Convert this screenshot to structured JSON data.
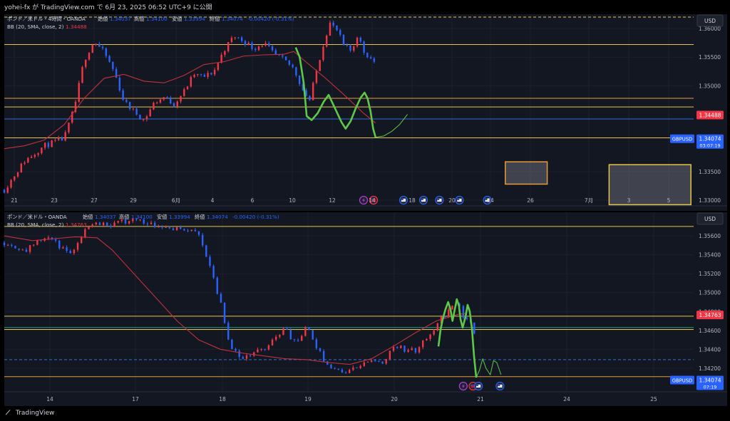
{
  "header": {
    "caption": "yohei-fx が TradingView.com で 6月 23, 2025 06:52 UTC+9 に公開"
  },
  "footer": {
    "brand": "TradingView"
  },
  "colors": {
    "background": "#131722",
    "up": "#f23645",
    "down": "#2962ff",
    "bb_basis": "#c2313b",
    "level_yellow": "#e6c547",
    "level_orange": "#e89a3a",
    "level_blue": "#2f6fd6",
    "level_green": "#2a9d72",
    "forecast": "#5ec948",
    "price_tag": "#f23645",
    "symbol_tag": "#2962ff"
  },
  "chart_data": [
    {
      "type": "candlestick",
      "header": {
        "title": "ポンド／米ドル・4時間・OANDA",
        "o_label": "始値",
        "o_value": "1.34037",
        "h_label": "高値",
        "h_value": "1.34100",
        "l_label": "安値",
        "l_value": "1.33994",
        "c_label": "終値",
        "c_value": "1.34074",
        "change": "-0.00420 (-0.31%)"
      },
      "indicator": {
        "label": "BB (20, SMA, close, 2)",
        "value": "1.34488"
      },
      "currency": "USD",
      "ylim": [
        1.329,
        1.3625
      ],
      "yticks": [
        "1.36000",
        "1.35500",
        "1.35000",
        "1.33500",
        "1.33000"
      ],
      "xticks": [
        "21",
        "23",
        "27",
        "29",
        "6月",
        "4",
        "6",
        "10",
        "12",
        "14",
        "18",
        "20",
        "24",
        "26",
        "7月",
        "3",
        "5"
      ],
      "levels": [
        {
          "value": 1.362,
          "style": "dash",
          "color": "#e6c547"
        },
        {
          "value": 1.3572,
          "style": "solid",
          "color": "#e6c547"
        },
        {
          "value": 1.3478,
          "style": "solid",
          "color": "#e89a3a"
        },
        {
          "value": 1.3463,
          "style": "solid",
          "color": "#e6c547"
        },
        {
          "value": 1.3442,
          "style": "solid",
          "color": "#2f6fd6"
        },
        {
          "value": 1.3409,
          "style": "solid",
          "color": "#e6c547"
        }
      ],
      "price_tags": [
        {
          "value": 1.34488,
          "text": "1.34488",
          "kind": "indicator"
        },
        {
          "value": 1.34074,
          "symbol": "GBPUSD",
          "text": "1.34074",
          "countdown": "03:07:19",
          "kind": "symbol"
        }
      ],
      "zones": [
        {
          "start": 25.1,
          "end": 27.2,
          "low": 1.3328,
          "high": 1.3367,
          "color": "#e89a3a"
        },
        {
          "start": 30.3,
          "end": 34.4,
          "low": 1.3292,
          "high": 1.3362,
          "color": "#e6c547"
        }
      ],
      "events": [
        {
          "x": 18.0,
          "kind": "lightning"
        },
        {
          "x": 18.5,
          "kind": "uk"
        },
        {
          "x": 20.0,
          "kind": "us"
        },
        {
          "x": 21.0,
          "kind": "us"
        },
        {
          "x": 21.8,
          "kind": "us"
        },
        {
          "x": 22.8,
          "kind": "us"
        },
        {
          "x": 24.2,
          "kind": "us"
        }
      ],
      "forecast": {
        "past": [
          [
            14.6,
            1.3567
          ],
          [
            14.8,
            1.355
          ],
          [
            15.0,
            1.3505
          ],
          [
            15.15,
            1.3447
          ],
          [
            15.4,
            1.344
          ],
          [
            15.7,
            1.3452
          ],
          [
            16.0,
            1.3472
          ],
          [
            16.25,
            1.3484
          ],
          [
            16.55,
            1.3462
          ],
          [
            16.9,
            1.3436
          ],
          [
            17.1,
            1.3425
          ],
          [
            17.35,
            1.3438
          ],
          [
            17.6,
            1.346
          ],
          [
            17.85,
            1.3479
          ],
          [
            18.05,
            1.3488
          ],
          [
            18.2,
            1.3478
          ],
          [
            18.35,
            1.3455
          ],
          [
            18.48,
            1.3425
          ],
          [
            18.6,
            1.341
          ]
        ],
        "future": [
          [
            18.6,
            1.341
          ],
          [
            19.0,
            1.3412
          ],
          [
            19.4,
            1.342
          ],
          [
            19.8,
            1.3432
          ],
          [
            20.2,
            1.345
          ]
        ]
      },
      "bb_basis": [
        [
          0,
          1.339
        ],
        [
          1,
          1.3395
        ],
        [
          2,
          1.3405
        ],
        [
          3,
          1.3432
        ],
        [
          4,
          1.3478
        ],
        [
          5,
          1.3513
        ],
        [
          6,
          1.352
        ],
        [
          7,
          1.3508
        ],
        [
          8,
          1.3505
        ],
        [
          9,
          1.3518
        ],
        [
          10,
          1.3537
        ],
        [
          11,
          1.3542
        ],
        [
          12,
          1.3552
        ],
        [
          13,
          1.3554
        ],
        [
          14,
          1.3555
        ],
        [
          14.5,
          1.356
        ],
        [
          15,
          1.3545
        ],
        [
          16,
          1.3516
        ],
        [
          17,
          1.3485
        ],
        [
          18,
          1.3452
        ],
        [
          18.6,
          1.3435
        ]
      ]
    },
    {
      "type": "candlestick",
      "header": {
        "title": "ポンド／米ドル・OANDA",
        "o_label": "始値",
        "o_value": "1.34037",
        "h_label": "高値",
        "h_value": "1.34100",
        "l_label": "安値",
        "l_value": "1.33994",
        "c_label": "終値",
        "c_value": "1.34074",
        "change": "-0.00420 (-0.31%)"
      },
      "indicator": {
        "label": "BB (20, SMA, close, 2)",
        "value": "1.34763"
      },
      "currency": "USD",
      "ylim": [
        1.3395,
        1.3585
      ],
      "yticks": [
        "1.35600",
        "1.35400",
        "1.35200",
        "1.35000",
        "1.34800",
        "1.34600",
        "1.34400",
        "1.34200"
      ],
      "xticks": [
        "14",
        "17",
        "18",
        "19",
        "20",
        "21",
        "24",
        "25"
      ],
      "levels": [
        {
          "value": 1.357,
          "style": "solid",
          "color": "#e6c547"
        },
        {
          "value": 1.3475,
          "style": "solid",
          "color": "#e6c547"
        },
        {
          "value": 1.3463,
          "style": "solid",
          "color": "#2a9d72"
        },
        {
          "value": 1.3461,
          "style": "solid",
          "color": "#e6c547"
        },
        {
          "value": 1.3429,
          "style": "dash",
          "color": "#2f6fd6"
        },
        {
          "value": 1.3411,
          "style": "solid",
          "color": "#e89a3a"
        }
      ],
      "price_tags": [
        {
          "value": 1.34763,
          "text": "1.34763",
          "kind": "indicator"
        },
        {
          "value": 1.34074,
          "symbol": "GBPUSD",
          "text": "1.34074",
          "countdown": "07:19",
          "kind": "symbol"
        }
      ],
      "events": [
        {
          "x": 21.25,
          "kind": "lightning"
        },
        {
          "x": 21.7,
          "kind": "uk"
        },
        {
          "x": 21.95,
          "kind": "us"
        },
        {
          "x": 22.95,
          "kind": "us"
        }
      ],
      "forecast": {
        "past": [
          [
            20.1,
            1.3443
          ],
          [
            20.2,
            1.3461
          ],
          [
            20.3,
            1.3472
          ],
          [
            20.42,
            1.3482
          ],
          [
            20.55,
            1.349
          ],
          [
            20.65,
            1.3483
          ],
          [
            20.75,
            1.347
          ],
          [
            20.82,
            1.3478
          ],
          [
            20.95,
            1.3493
          ],
          [
            21.05,
            1.3486
          ],
          [
            21.12,
            1.3472
          ],
          [
            21.22,
            1.3463
          ],
          [
            21.35,
            1.3474
          ],
          [
            21.45,
            1.3487
          ],
          [
            21.55,
            1.348
          ],
          [
            21.65,
            1.3462
          ],
          [
            21.75,
            1.3432
          ],
          [
            21.85,
            1.341
          ]
        ],
        "future": [
          [
            21.85,
            1.341
          ],
          [
            22.0,
            1.3418
          ],
          [
            22.15,
            1.343
          ],
          [
            22.3,
            1.342
          ],
          [
            22.5,
            1.3413
          ],
          [
            22.65,
            1.3428
          ],
          [
            22.8,
            1.3426
          ],
          [
            23.0,
            1.3413
          ]
        ]
      },
      "bb_basis": [
        [
          0,
          1.356
        ],
        [
          1.3,
          1.3555
        ],
        [
          2.3,
          1.3557
        ],
        [
          3.3,
          1.3559
        ],
        [
          4.3,
          1.3558
        ],
        [
          5,
          1.3545
        ],
        [
          6,
          1.352
        ],
        [
          7,
          1.3495
        ],
        [
          8,
          1.347
        ],
        [
          9,
          1.345
        ],
        [
          10,
          1.344
        ],
        [
          11,
          1.3436
        ],
        [
          12,
          1.3433
        ],
        [
          13,
          1.343
        ],
        [
          14,
          1.3429
        ],
        [
          15,
          1.3426
        ],
        [
          16,
          1.3424
        ],
        [
          17,
          1.343
        ],
        [
          18,
          1.3443
        ],
        [
          19,
          1.3457
        ],
        [
          20,
          1.347
        ],
        [
          21,
          1.3477
        ],
        [
          21.4,
          1.3478
        ]
      ]
    }
  ]
}
